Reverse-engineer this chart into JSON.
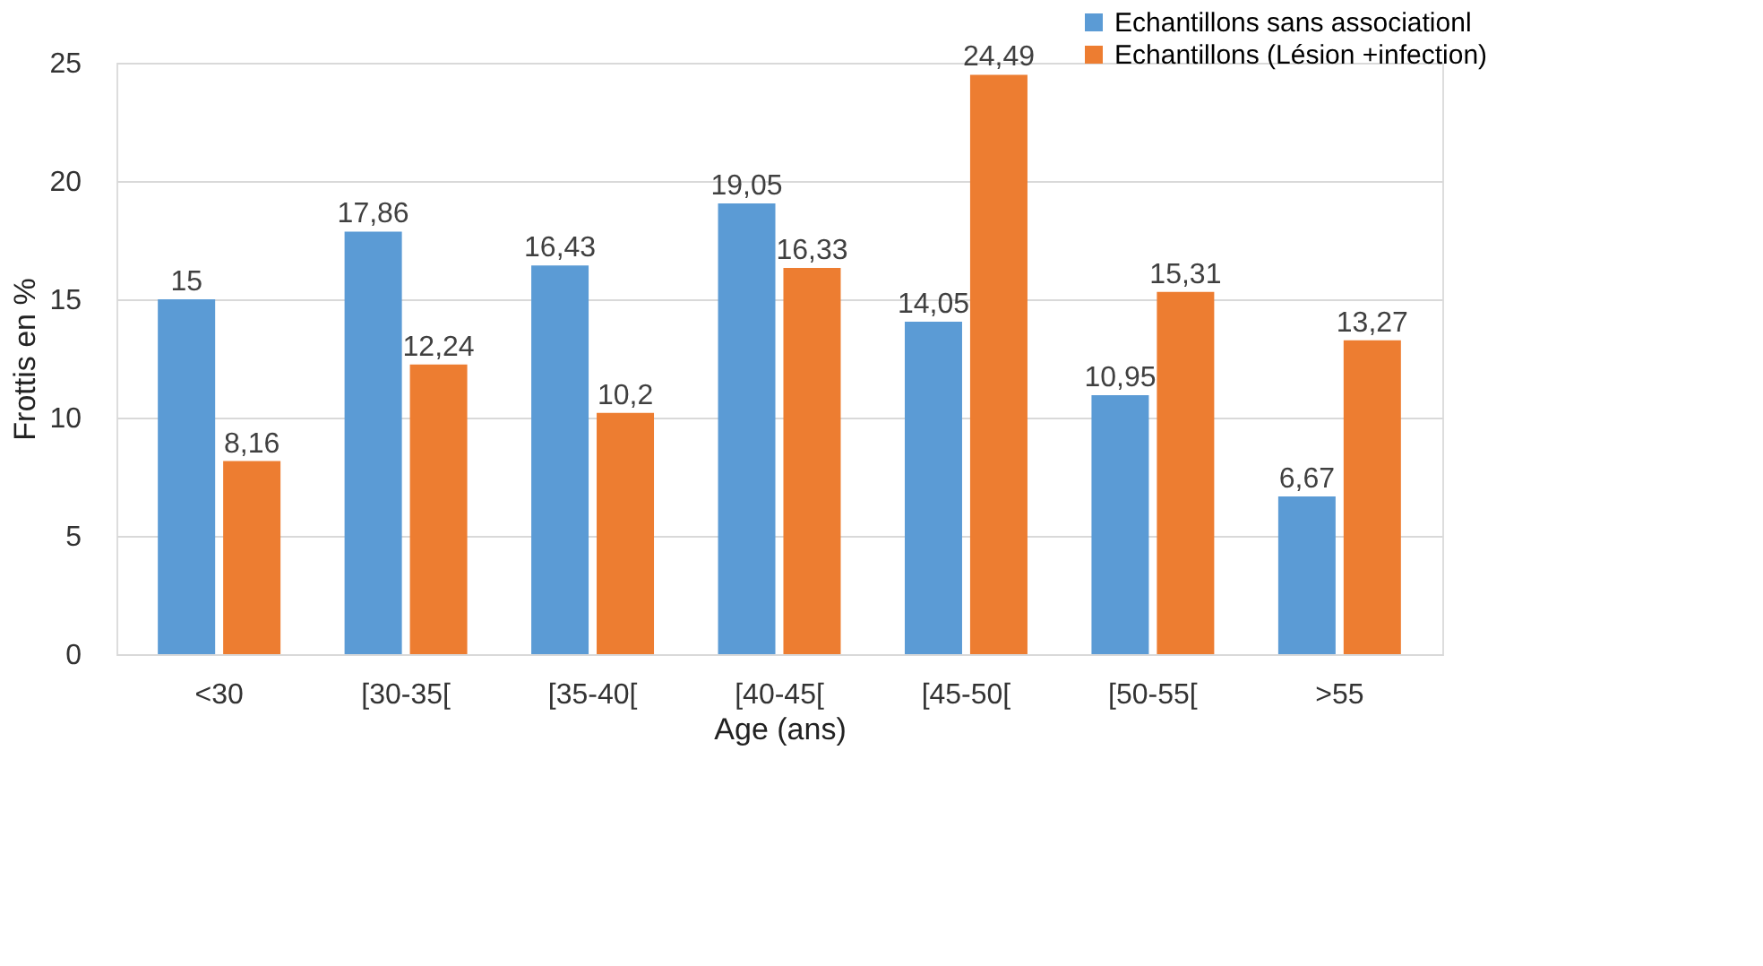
{
  "chart_data": {
    "type": "bar",
    "xlabel": "Age (ans)",
    "ylabel": "Frottis en %",
    "categories": [
      "<30",
      "[30-35[",
      "[35-40[",
      "[40-45[",
      "[45-50[",
      "[50-55[",
      ">55"
    ],
    "series": [
      {
        "name": "Echantillons sans associationl",
        "color": "#5b9bd5",
        "values": [
          15,
          17.86,
          16.43,
          19.05,
          14.05,
          10.95,
          6.67
        ],
        "value_labels": [
          "15",
          "17,86",
          "16,43",
          "19,05",
          "14,05",
          "10,95",
          "6,67"
        ]
      },
      {
        "name": "Echantillons  (Lésion +infection)",
        "color": "#ed7d31",
        "values": [
          8.16,
          12.24,
          10.2,
          16.33,
          24.49,
          15.31,
          13.27
        ],
        "value_labels": [
          "8,16",
          "12,24",
          "10,2",
          "16,33",
          "24,49",
          "15,31",
          "13,27"
        ]
      }
    ],
    "ylim": [
      0,
      25
    ],
    "yticks": [
      0,
      5,
      10,
      15,
      20,
      25
    ],
    "grid": "y",
    "legend": "top right"
  }
}
